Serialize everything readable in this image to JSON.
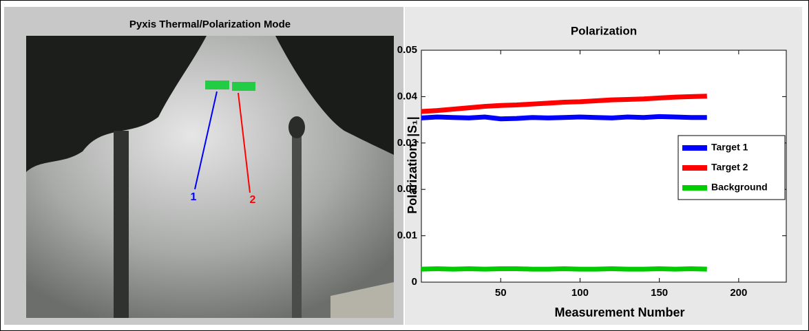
{
  "image_panel": {
    "title": "Pyxis Thermal/Polarization Mode",
    "labels": [
      "1",
      "2"
    ]
  },
  "chart_data": {
    "type": "line",
    "title": "Polarization",
    "x_label": "Measurement Number",
    "y_label": "Polarization, |S₁|",
    "x": [
      0,
      10,
      20,
      30,
      40,
      50,
      60,
      70,
      80,
      90,
      100,
      110,
      120,
      130,
      140,
      150,
      160,
      170,
      180
    ],
    "series": [
      {
        "name": "Target 1",
        "color": "#0000ff",
        "values": [
          0.0354,
          0.0356,
          0.0355,
          0.0354,
          0.0356,
          0.0352,
          0.0353,
          0.0355,
          0.0354,
          0.0355,
          0.0356,
          0.0355,
          0.0354,
          0.0356,
          0.0355,
          0.0357,
          0.0356,
          0.0355,
          0.0355
        ]
      },
      {
        "name": "Target 2",
        "color": "#ff0000",
        "values": [
          0.0368,
          0.037,
          0.0373,
          0.0376,
          0.0379,
          0.0381,
          0.0382,
          0.0384,
          0.0386,
          0.0388,
          0.0389,
          0.0391,
          0.0393,
          0.0394,
          0.0395,
          0.0397,
          0.0399,
          0.04,
          0.0401
        ]
      },
      {
        "name": "Background",
        "color": "#00cc00",
        "values": [
          0.0028,
          0.0029,
          0.0028,
          0.0029,
          0.0028,
          0.0029,
          0.0029,
          0.0028,
          0.0028,
          0.0029,
          0.0028,
          0.0028,
          0.0029,
          0.0028,
          0.0028,
          0.0029,
          0.0028,
          0.0029,
          0.0028
        ]
      }
    ],
    "xlim": [
      0,
      230
    ],
    "xticks": [
      50,
      100,
      150,
      200
    ],
    "ylim": [
      0,
      0.05
    ],
    "yticks": [
      0,
      0.01,
      0.02,
      0.03,
      0.04,
      0.05
    ],
    "legend": "right"
  }
}
